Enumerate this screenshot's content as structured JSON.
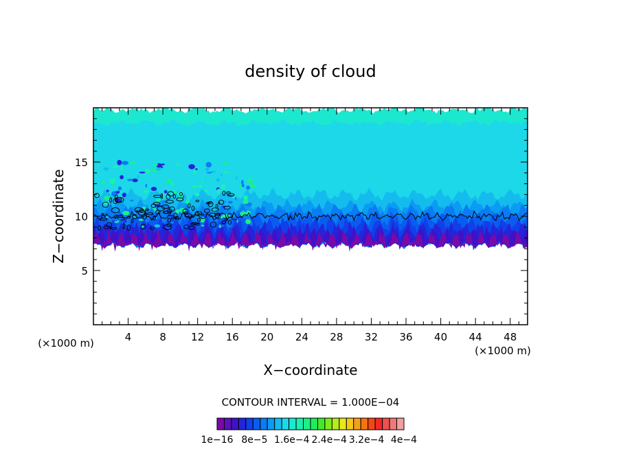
{
  "chart_data": {
    "type": "heatmap",
    "title": "density of cloud",
    "xlabel": "X−coordinate",
    "ylabel": "Z−coordinate",
    "x_unit_left": "(×1000 m)",
    "x_unit_right": "(×1000 m)",
    "xlim": [
      0,
      50
    ],
    "ylim": [
      0,
      20
    ],
    "xticks": [
      4,
      8,
      12,
      16,
      20,
      24,
      28,
      32,
      36,
      40,
      44,
      48
    ],
    "yticks": [
      5,
      10,
      15
    ],
    "cloud_layer": {
      "base_km": 7.4,
      "dense_top_km": 10.5,
      "top_km": 19.8,
      "contour_level_km": 10.0
    },
    "contour_interval": "CONTOUR INTERVAL = 1.000E−04",
    "colorbar": {
      "colors": [
        "#7a0aa8",
        "#5d0fb8",
        "#3f12c8",
        "#2424d8",
        "#1040e8",
        "#0a5cf0",
        "#0a7cf4",
        "#0a9cf2",
        "#14bcee",
        "#1cd8e8",
        "#1ce8d0",
        "#1cf0b0",
        "#1cf088",
        "#20ec5c",
        "#44e82c",
        "#7cec1c",
        "#b4ec1c",
        "#e8e81c",
        "#f4c81c",
        "#f4a01c",
        "#f47414",
        "#f44814",
        "#f42828",
        "#f05050",
        "#f07878",
        "#f0a0a0"
      ],
      "labels": [
        "1e−16",
        "8e−5",
        "1.6e−4",
        "2.4e−4",
        "3.2e−4",
        "4e−4"
      ]
    }
  }
}
